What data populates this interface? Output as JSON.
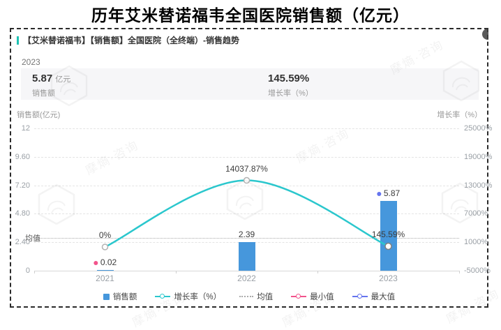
{
  "page_title": "历年艾米替诺福韦全国医院销售额（亿元）",
  "card": {
    "header": "【艾米替诺福韦】【销售额】全国医院（全终端）-销售趋势",
    "year_label": "2023",
    "stats": [
      {
        "value": "5.87",
        "unit": "亿元",
        "label": "销售额"
      },
      {
        "value": "145.59%",
        "unit": "",
        "label": "增长率（%）"
      }
    ]
  },
  "chart_data": {
    "type": "combo-bar-line",
    "categories": [
      "2021",
      "2022",
      "2023"
    ],
    "series": [
      {
        "name": "销售额",
        "type": "bar",
        "values": [
          0.02,
          2.39,
          5.87
        ],
        "labels": [
          "0.02",
          "2.39",
          "5.87"
        ],
        "color": "#4697dc",
        "axis": "left"
      },
      {
        "name": "增长率（%）",
        "type": "line",
        "values_pct": [
          0,
          14037.87,
          145.59
        ],
        "labels": [
          "0%",
          "14037.87%",
          "145.59%"
        ],
        "color": "#2bc7cd",
        "axis": "right"
      }
    ],
    "mean_value": 2.76,
    "mean_label": "均值",
    "min_marker": {
      "category": "2021",
      "value": 0.02,
      "color": "#f2548c"
    },
    "max_marker": {
      "category": "2023",
      "value": 5.87,
      "color": "#6574ee"
    },
    "left_axis": {
      "title": "销售额(亿元)",
      "ticks": [
        "12",
        "9.60",
        "7.20",
        "4.80",
        "2.40",
        "0"
      ],
      "range": [
        0,
        12
      ]
    },
    "right_axis": {
      "title": "增长率（%）",
      "ticks": [
        "25000%",
        "19000%",
        "13000%",
        "7000%",
        "1000%",
        "-5000%"
      ],
      "range": [
        -5000,
        25000
      ]
    },
    "legend": [
      {
        "label": "销售额",
        "type": "square",
        "color": "#4697dc"
      },
      {
        "label": "增长率（%）",
        "type": "line-circle",
        "color": "#2bc7cd"
      },
      {
        "label": "均值",
        "type": "dotted",
        "color": "#aaaaaa"
      },
      {
        "label": "最小值",
        "type": "line-circle",
        "color": "#f2548c"
      },
      {
        "label": "最大值",
        "type": "line-circle",
        "color": "#6574ee"
      }
    ],
    "grid": "dashed-horizontal",
    "legend_position": "bottom"
  },
  "watermark": {
    "text": "摩熵·咨询"
  }
}
